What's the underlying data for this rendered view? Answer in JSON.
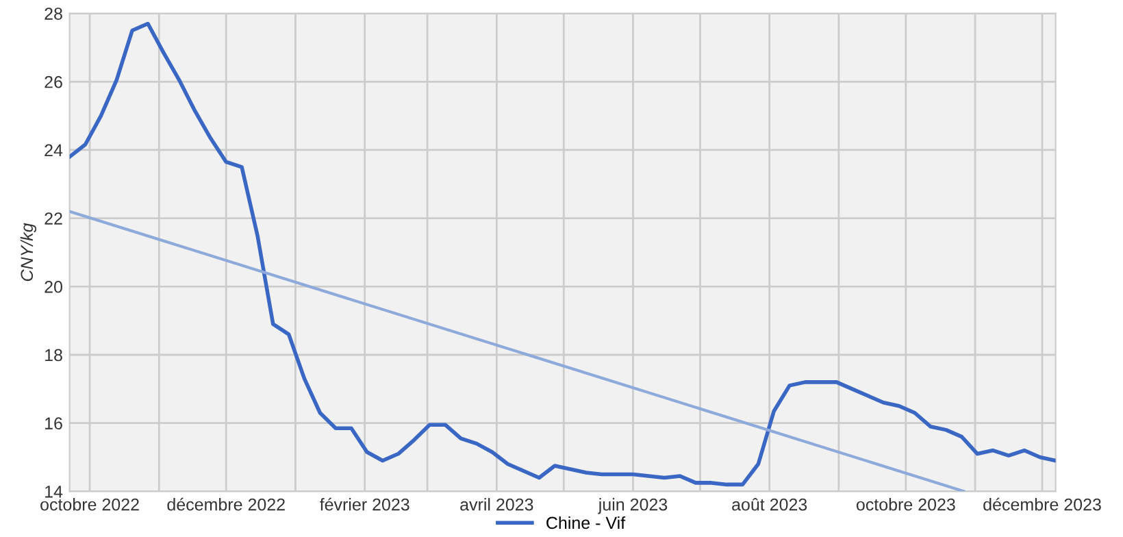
{
  "chart_data": {
    "type": "line",
    "ylabel": "CNY/kg",
    "x": [
      "2022-09-22",
      "2022-09-29",
      "2022-10-06",
      "2022-10-13",
      "2022-10-20",
      "2022-10-27",
      "2022-11-03",
      "2022-11-10",
      "2022-11-17",
      "2022-11-24",
      "2022-12-01",
      "2022-12-08",
      "2022-12-15",
      "2022-12-22",
      "2022-12-29",
      "2023-01-05",
      "2023-01-12",
      "2023-01-19",
      "2023-01-26",
      "2023-02-02",
      "2023-02-09",
      "2023-02-16",
      "2023-02-23",
      "2023-03-02",
      "2023-03-09",
      "2023-03-16",
      "2023-03-23",
      "2023-03-30",
      "2023-04-06",
      "2023-04-13",
      "2023-04-20",
      "2023-04-27",
      "2023-05-04",
      "2023-05-11",
      "2023-05-18",
      "2023-05-25",
      "2023-06-01",
      "2023-06-08",
      "2023-06-15",
      "2023-06-22",
      "2023-06-29",
      "2023-07-06",
      "2023-07-13",
      "2023-07-20",
      "2023-07-27",
      "2023-08-03",
      "2023-08-10",
      "2023-08-17",
      "2023-08-24",
      "2023-08-31",
      "2023-09-07",
      "2023-09-14",
      "2023-09-21",
      "2023-09-28",
      "2023-10-05",
      "2023-10-12",
      "2023-10-19",
      "2023-10-26",
      "2023-11-02",
      "2023-11-09",
      "2023-11-16",
      "2023-11-23",
      "2023-11-30",
      "2023-12-07"
    ],
    "series": [
      {
        "name": "Chine - Vif",
        "color": "#3a66c4",
        "values": [
          23.8,
          24.16,
          25.0,
          26.05,
          27.5,
          27.7,
          26.85,
          26.05,
          25.15,
          24.35,
          23.65,
          23.5,
          21.5,
          18.9,
          18.6,
          17.3,
          16.3,
          15.85,
          15.85,
          15.15,
          14.9,
          15.1,
          15.5,
          15.95,
          15.95,
          15.55,
          15.4,
          15.15,
          14.8,
          14.6,
          14.4,
          14.75,
          14.65,
          14.55,
          14.5,
          14.5,
          14.5,
          14.45,
          14.4,
          14.45,
          14.25,
          14.25,
          14.2,
          14.2,
          14.8,
          16.35,
          17.1,
          17.2,
          17.2,
          17.2,
          17.0,
          16.8,
          16.6,
          16.5,
          16.3,
          15.9,
          15.8,
          15.6,
          15.1,
          15.2,
          15.05,
          15.2,
          15.0,
          14.9
        ]
      },
      {
        "type": "line",
        "color": "#8eaadb",
        "x": [
          "2022-09-22",
          "2023-10-27"
        ],
        "values": [
          22.2,
          14.0
        ]
      }
    ],
    "xlim": [
      "2022-09-22",
      "2023-12-07"
    ],
    "xticks": [
      {
        "value": "2022-10-01",
        "label": "octobre 2022"
      },
      {
        "value": "2022-11-01",
        "label": null
      },
      {
        "value": "2022-12-01",
        "label": "décembre 2022"
      },
      {
        "value": "2023-01-01",
        "label": null
      },
      {
        "value": "2023-02-01",
        "label": "février 2023"
      },
      {
        "value": "2023-03-01",
        "label": null
      },
      {
        "value": "2023-04-01",
        "label": "avril 2023"
      },
      {
        "value": "2023-05-01",
        "label": null
      },
      {
        "value": "2023-06-01",
        "label": "juin 2023"
      },
      {
        "value": "2023-07-01",
        "label": null
      },
      {
        "value": "2023-08-01",
        "label": "août 2023"
      },
      {
        "value": "2023-09-01",
        "label": null
      },
      {
        "value": "2023-10-01",
        "label": "octobre 2023"
      },
      {
        "value": "2023-11-01",
        "label": null
      },
      {
        "value": "2023-12-01",
        "label": "décembre 2023"
      }
    ],
    "ylim": [
      14,
      28
    ],
    "yticks": [
      14,
      16,
      18,
      20,
      22,
      24,
      26,
      28
    ],
    "grid": true,
    "legend": "bottom",
    "marker": "none",
    "line_style": "solid"
  }
}
